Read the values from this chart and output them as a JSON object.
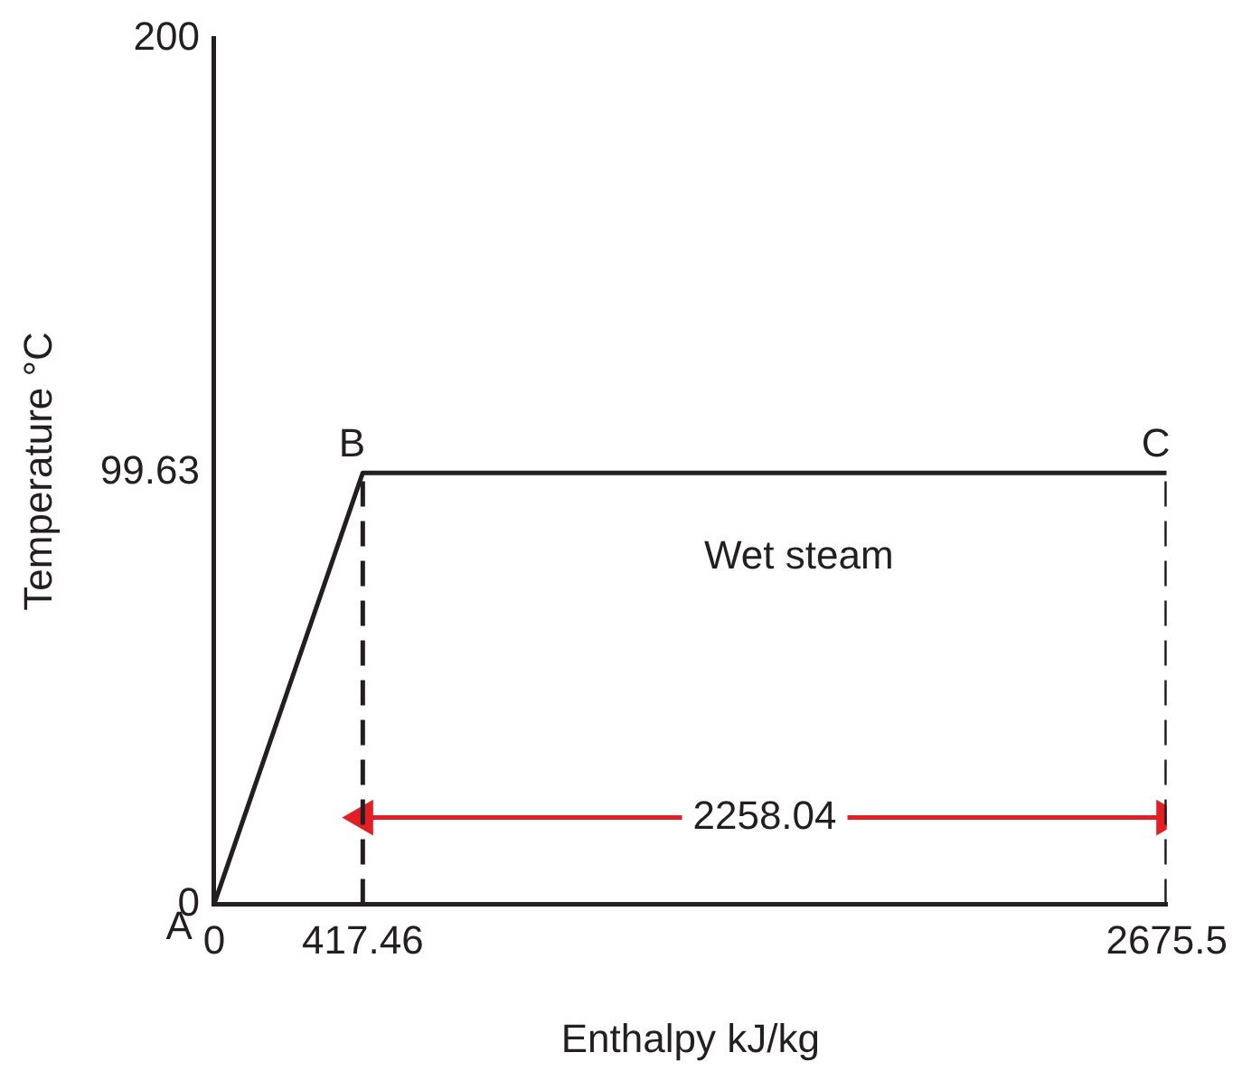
{
  "chart_data": {
    "type": "line",
    "xlabel": "Enthalpy kJ/kg",
    "ylabel": "Temperature °C",
    "xlim": [
      0,
      2675.5
    ],
    "ylim": [
      0,
      200
    ],
    "xticks": [
      0,
      417.46,
      2675.5
    ],
    "yticks": [
      0,
      99.63,
      200
    ],
    "grid": false,
    "legend": false,
    "marker": "none",
    "series": [
      {
        "color": "#231f20",
        "x": [
          0,
          417.46,
          2675.5
        ],
        "values": [
          0,
          99.63,
          99.63
        ]
      },
      {
        "color": "#231f20",
        "x": [
          417.46,
          417.46
        ],
        "values": [
          0,
          99.63
        ],
        "line_style": "dashed"
      },
      {
        "color": "#231f20",
        "x": [
          2675.5,
          2675.5
        ],
        "values": [
          0,
          99.63
        ],
        "line_style": "dashed"
      },
      {
        "color": "#e31e24",
        "x": [
          417.46,
          2675.5
        ],
        "values": [
          20,
          20
        ],
        "marker": "triangle"
      }
    ],
    "annotations": [
      {
        "text": "A",
        "x": 0,
        "y": 0
      },
      {
        "text": "B",
        "x": 417.46,
        "y": 99.63
      },
      {
        "text": "C",
        "x": 2675.5,
        "y": 99.63
      },
      "Wet steam",
      {
        "text": "2258.04",
        "x": 1546.48,
        "y": 20
      }
    ]
  }
}
